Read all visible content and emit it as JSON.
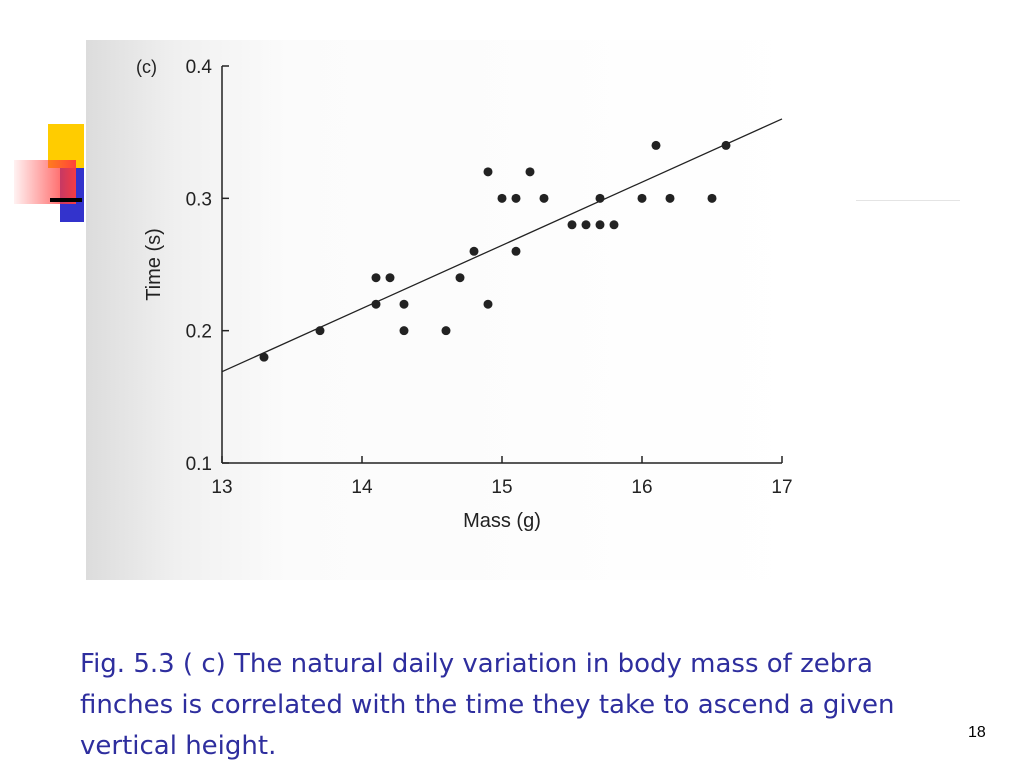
{
  "chart_data": {
    "type": "scatter",
    "panel_label": "(c)",
    "xlabel": "Mass (g)",
    "ylabel": "Time (s)",
    "xlim": [
      13,
      17
    ],
    "ylim": [
      0.1,
      0.4
    ],
    "x_ticks": [
      "13",
      "14",
      "15",
      "16",
      "17"
    ],
    "y_ticks": [
      "0.1",
      "0.2",
      "0.3",
      "0.4"
    ],
    "points": [
      [
        13.3,
        0.18
      ],
      [
        13.7,
        0.2
      ],
      [
        14.1,
        0.24
      ],
      [
        14.2,
        0.24
      ],
      [
        14.1,
        0.22
      ],
      [
        14.3,
        0.22
      ],
      [
        14.3,
        0.2
      ],
      [
        14.6,
        0.2
      ],
      [
        14.7,
        0.24
      ],
      [
        14.8,
        0.26
      ],
      [
        14.9,
        0.32
      ],
      [
        14.9,
        0.22
      ],
      [
        15.0,
        0.3
      ],
      [
        15.1,
        0.3
      ],
      [
        15.1,
        0.26
      ],
      [
        15.2,
        0.32
      ],
      [
        15.3,
        0.3
      ],
      [
        15.5,
        0.28
      ],
      [
        15.6,
        0.28
      ],
      [
        15.7,
        0.28
      ],
      [
        15.8,
        0.28
      ],
      [
        15.7,
        0.3
      ],
      [
        16.0,
        0.3
      ],
      [
        16.1,
        0.34
      ],
      [
        16.2,
        0.3
      ],
      [
        16.5,
        0.3
      ],
      [
        16.6,
        0.34
      ]
    ],
    "trend_line": {
      "x": [
        13.0,
        17.0
      ],
      "y": [
        0.169,
        0.36
      ]
    },
    "grid": false,
    "legend": "none"
  },
  "caption": "Fig. 5.3 ( c) The natural daily variation in body mass of zebra finches is correlated with the time they take to ascend a given vertical height.",
  "page_number": "18",
  "colors": {
    "caption": "#2e2e9e",
    "deco_yellow": "#ffcc00",
    "deco_blue": "#3333cc",
    "deco_red": "#ff3333",
    "plot_ink": "#222222"
  }
}
